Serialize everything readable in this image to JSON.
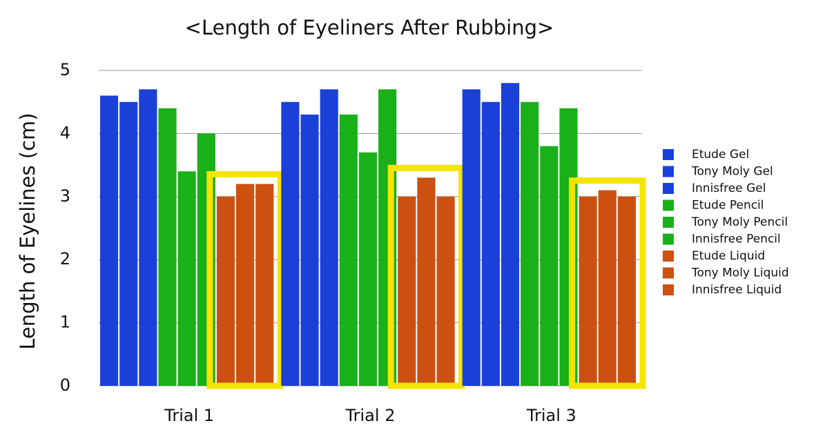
{
  "chart_data": {
    "type": "bar",
    "title": "<Length of Eyeliners After Rubbing>",
    "y_label": "Length of Eyelines (cm)",
    "categories": [
      "Trial 1",
      "Trial 2",
      "Trial 3"
    ],
    "series": [
      {
        "name": "Etude Gel",
        "color": "#1a40d8",
        "values": [
          4.6,
          4.5,
          4.7
        ]
      },
      {
        "name": "Tony Moly Gel",
        "color": "#1a40d8",
        "values": [
          4.5,
          4.3,
          4.5
        ]
      },
      {
        "name": "Innisfree Gel",
        "color": "#1a40d8",
        "values": [
          4.7,
          4.7,
          4.8
        ]
      },
      {
        "name": "Etude Pencil",
        "color": "#1ab01a",
        "values": [
          4.4,
          4.3,
          4.5
        ]
      },
      {
        "name": "Tony Moly Pencil",
        "color": "#1ab01a",
        "values": [
          3.4,
          3.7,
          3.8
        ]
      },
      {
        "name": "Innisfree Pencil",
        "color": "#1ab01a",
        "values": [
          4.0,
          4.7,
          4.4
        ]
      },
      {
        "name": "Etude Liquid",
        "color": "#cc5010",
        "values": [
          3.0,
          3.0,
          3.0
        ]
      },
      {
        "name": "Tony Moly Liquid",
        "color": "#cc5010",
        "values": [
          3.2,
          3.3,
          3.1
        ]
      },
      {
        "name": "Innisfree Liquid",
        "color": "#cc5010",
        "values": [
          3.2,
          3.0,
          3.0
        ]
      }
    ],
    "ylim": [
      0,
      5
    ],
    "yticks": [
      0,
      1,
      2,
      3,
      4,
      5
    ],
    "grid": true,
    "legend": "right"
  }
}
